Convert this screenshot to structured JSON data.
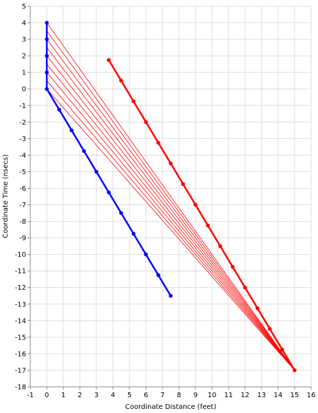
{
  "chart_data": {
    "type": "line",
    "title": "",
    "xlabel": "Coordinate Distance (feet)",
    "ylabel": "Coordinate Time (nsecs)",
    "xlim": [
      -1,
      16
    ],
    "ylim": [
      -18,
      5
    ],
    "xticks": [
      -1,
      0,
      1,
      2,
      3,
      4,
      5,
      6,
      7,
      8,
      9,
      10,
      11,
      12,
      13,
      14,
      15,
      16
    ],
    "yticks": [
      5,
      4,
      3,
      2,
      1,
      0,
      -1,
      -2,
      -3,
      -4,
      -5,
      -6,
      -7,
      -8,
      -9,
      -10,
      -11,
      -12,
      -13,
      -14,
      -15,
      -16,
      -17,
      -18
    ],
    "grid": true,
    "colors": {
      "blue": "#0000ff",
      "red": "#ff0000",
      "grid": "#dcdcdc",
      "axis": "#888888"
    },
    "series": [
      {
        "color": "#0000ff",
        "points": [
          [
            0,
            4
          ],
          [
            0,
            3
          ],
          [
            0,
            2
          ],
          [
            0,
            1
          ],
          [
            0,
            0
          ],
          [
            0.75,
            -1.25
          ],
          [
            1.5,
            -2.5
          ],
          [
            2.25,
            -3.75
          ],
          [
            3,
            -5
          ],
          [
            3.75,
            -6.25
          ],
          [
            4.5,
            -7.5
          ],
          [
            5.25,
            -8.75
          ],
          [
            6,
            -10
          ],
          [
            6.75,
            -11.25
          ],
          [
            7.5,
            -12.5
          ]
        ]
      },
      {
        "color": "#ff0000",
        "points": [
          [
            3.75,
            1.75
          ],
          [
            4.5,
            0.5
          ],
          [
            5.25,
            -0.75
          ],
          [
            6,
            -2
          ],
          [
            6.75,
            -3.25
          ],
          [
            7.5,
            -4.5
          ],
          [
            8.25,
            -5.75
          ],
          [
            9,
            -7
          ],
          [
            9.75,
            -8.25
          ],
          [
            10.5,
            -9.5
          ],
          [
            11.25,
            -10.75
          ],
          [
            12,
            -12
          ],
          [
            12.75,
            -13.25
          ],
          [
            13.5,
            -14.5
          ],
          [
            14.25,
            -15.75
          ],
          [
            15,
            -17
          ]
        ]
      }
    ],
    "connector_lines": {
      "color": "#ff0000",
      "segments": [
        [
          [
            0,
            4
          ],
          [
            15,
            -17
          ]
        ],
        [
          [
            0,
            3.5
          ],
          [
            15,
            -17
          ]
        ],
        [
          [
            0,
            3
          ],
          [
            15,
            -17
          ]
        ],
        [
          [
            0,
            2.5
          ],
          [
            15,
            -17
          ]
        ],
        [
          [
            0,
            2
          ],
          [
            15,
            -17
          ]
        ],
        [
          [
            0,
            1.5
          ],
          [
            15,
            -17
          ]
        ],
        [
          [
            0,
            1
          ],
          [
            15,
            -17
          ]
        ],
        [
          [
            0,
            0.5
          ],
          [
            15,
            -17
          ]
        ],
        [
          [
            0,
            0
          ],
          [
            15,
            -17
          ]
        ]
      ]
    }
  }
}
